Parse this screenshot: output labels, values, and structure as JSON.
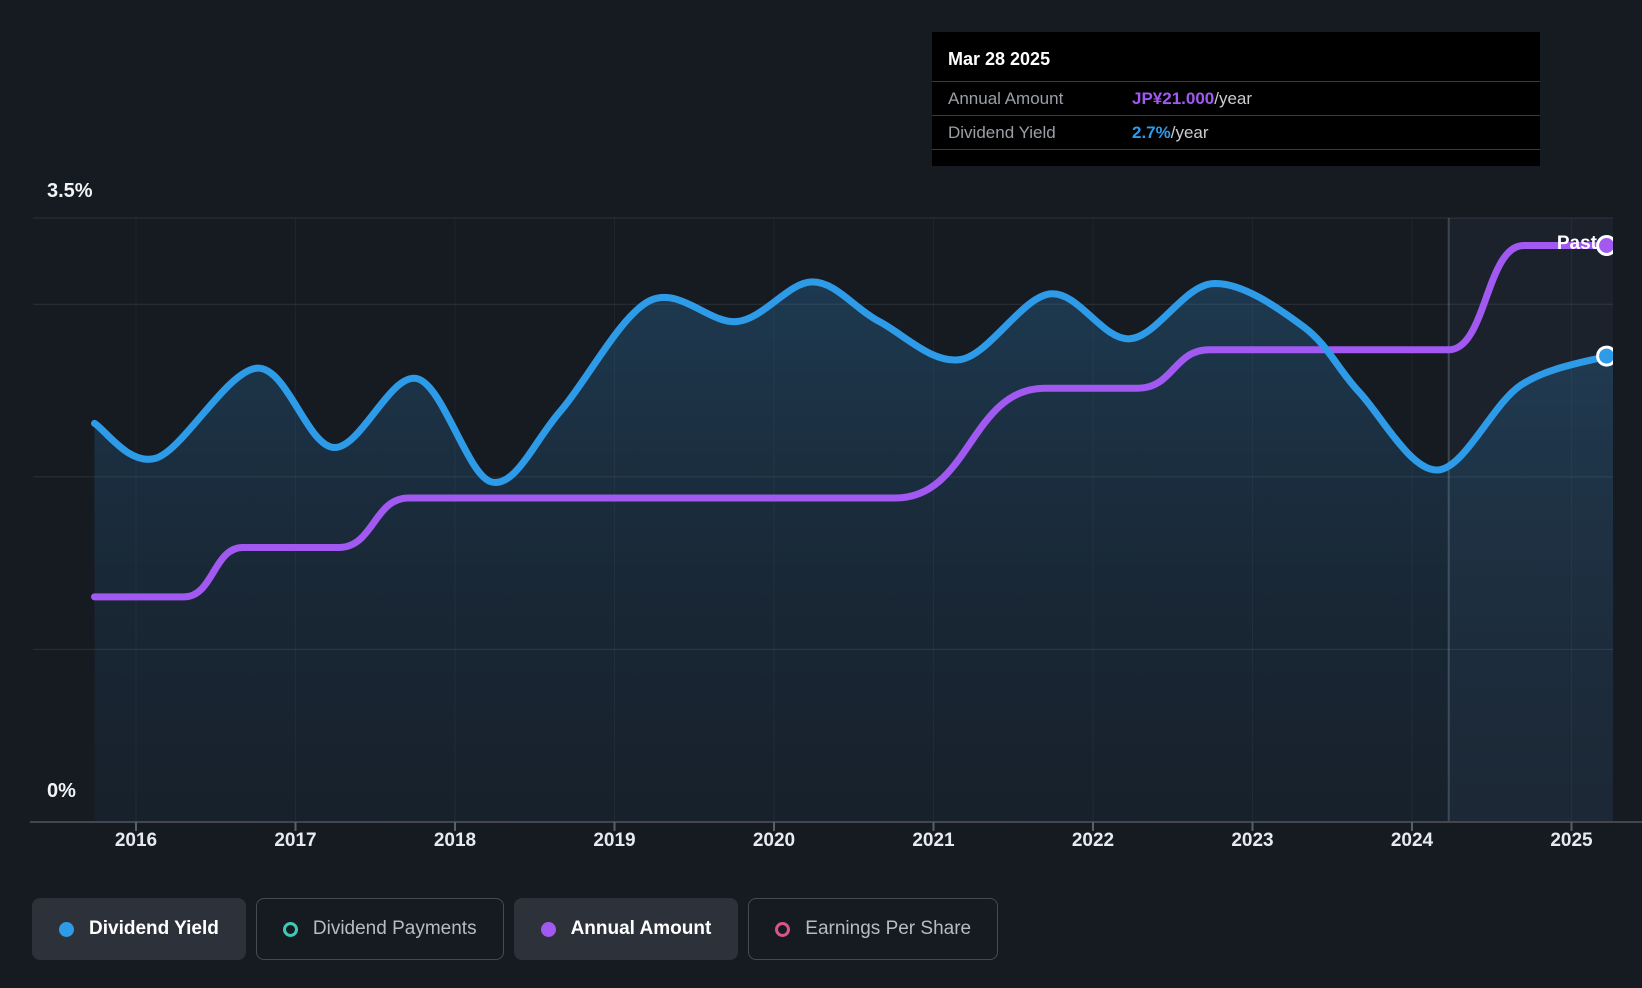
{
  "colors": {
    "background": "#161a21",
    "yield_line": "#2E9BE8",
    "amount_line": "#A159F2",
    "payments_marker": "#3FC9B5",
    "eps_marker": "#D9538F",
    "gridline": "rgba(255,255,255,0.10)",
    "axis_line": "#43474d",
    "past_band": "rgba(120,170,220,0.06)",
    "past_divider": "rgba(190,210,230,0.22)"
  },
  "tooltip": {
    "date": "Mar 28 2025",
    "rows": [
      {
        "label": "Annual Amount",
        "value": "JP¥21.000",
        "suffix": "/year",
        "color": "#A159F2"
      },
      {
        "label": "Dividend Yield",
        "value": "2.7%",
        "suffix": "/year",
        "color": "#2E9BE8"
      }
    ]
  },
  "y_axis": {
    "top_label": "3.5%",
    "bottom_label": "0%"
  },
  "x_axis": {
    "years": [
      "2016",
      "2017",
      "2018",
      "2019",
      "2020",
      "2021",
      "2022",
      "2023",
      "2024",
      "2025"
    ]
  },
  "past_label": "Past",
  "legend": {
    "items": [
      {
        "label": "Dividend Yield",
        "marker": "dot",
        "color": "#2E9BE8",
        "active": true
      },
      {
        "label": "Dividend Payments",
        "marker": "ring",
        "color": "#3FC9B5",
        "active": false
      },
      {
        "label": "Annual Amount",
        "marker": "dot",
        "color": "#A159F2",
        "active": true
      },
      {
        "label": "Earnings Per Share",
        "marker": "ring",
        "color": "#D9538F",
        "active": false
      }
    ]
  },
  "chart_data": {
    "type": "area",
    "x_range": [
      2015.74,
      2025.25
    ],
    "axes": {
      "percent": {
        "min": 0,
        "max": 3.5,
        "shown_ticks": [
          "3.5%",
          "0%"
        ]
      },
      "amount": {
        "min": 0,
        "max": 22,
        "unit": "JP¥/year"
      }
    },
    "gridlines_percent": [
      3.5,
      3.0,
      2.0,
      1.0
    ],
    "past_divider_x": 2024.23,
    "legend_position": "bottom",
    "series": [
      {
        "name": "Dividend Yield",
        "type": "smooth-area",
        "axis": "percent",
        "color": "#2E9BE8",
        "end_marker": true,
        "points": [
          [
            2015.74,
            2.31
          ],
          [
            2016.13,
            2.11
          ],
          [
            2016.76,
            2.63
          ],
          [
            2017.24,
            2.17
          ],
          [
            2017.76,
            2.57
          ],
          [
            2018.23,
            1.97
          ],
          [
            2018.66,
            2.38
          ],
          [
            2019.22,
            3.02
          ],
          [
            2019.77,
            2.9
          ],
          [
            2020.24,
            3.13
          ],
          [
            2020.66,
            2.9
          ],
          [
            2021.17,
            2.68
          ],
          [
            2021.73,
            3.06
          ],
          [
            2022.23,
            2.8
          ],
          [
            2022.75,
            3.12
          ],
          [
            2023.32,
            2.87
          ],
          [
            2023.67,
            2.49
          ],
          [
            2024.16,
            2.04
          ],
          [
            2024.68,
            2.53
          ],
          [
            2025.22,
            2.7
          ]
        ]
      },
      {
        "name": "Annual Amount",
        "type": "step-sigmoid",
        "axis": "amount",
        "color": "#A159F2",
        "end_marker": true,
        "points": [
          [
            2015.74,
            8.2
          ],
          [
            2016.3,
            8.2
          ],
          [
            2016.67,
            10.0
          ],
          [
            2017.27,
            10.0
          ],
          [
            2017.71,
            11.8
          ],
          [
            2020.76,
            11.8
          ],
          [
            2021.7,
            15.8
          ],
          [
            2022.28,
            15.8
          ],
          [
            2022.73,
            17.2
          ],
          [
            2024.23,
            17.2
          ],
          [
            2024.7,
            21.0
          ],
          [
            2025.22,
            21.0
          ]
        ]
      }
    ]
  }
}
